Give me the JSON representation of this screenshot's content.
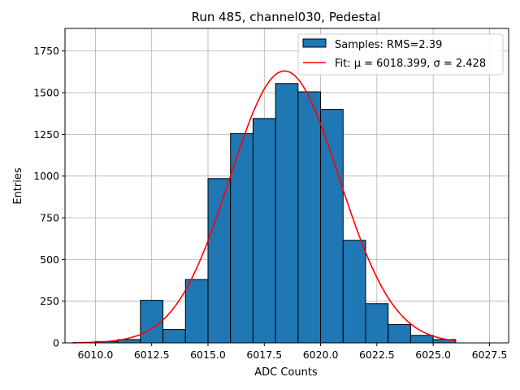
{
  "chart_data": {
    "type": "bar",
    "title": "Run 485, channel030, Pedestal",
    "xlabel": "ADC Counts",
    "ylabel": "Entries",
    "xlim": [
      6008.65,
      6028.35
    ],
    "ylim": [
      0,
      1885
    ],
    "xticks": [
      6010.0,
      6012.5,
      6015.0,
      6017.5,
      6020.0,
      6022.5,
      6025.0,
      6027.5
    ],
    "xtick_labels": [
      "6010.0",
      "6012.5",
      "6015.0",
      "6017.5",
      "6020.0",
      "6022.5",
      "6025.0",
      "6027.5"
    ],
    "yticks": [
      0,
      250,
      500,
      750,
      1000,
      1250,
      1500,
      1750
    ],
    "ytick_labels": [
      "0",
      "250",
      "500",
      "750",
      "1000",
      "1250",
      "1500",
      "1750"
    ],
    "grid": true,
    "legend_position": "top-right",
    "bin_width": 1.0,
    "bins": [
      {
        "left": 6010,
        "value": 8
      },
      {
        "left": 6011,
        "value": 20
      },
      {
        "left": 6012,
        "value": 255
      },
      {
        "left": 6013,
        "value": 80
      },
      {
        "left": 6014,
        "value": 380
      },
      {
        "left": 6015,
        "value": 985
      },
      {
        "left": 6016,
        "value": 1255
      },
      {
        "left": 6017,
        "value": 1345
      },
      {
        "left": 6018,
        "value": 1555
      },
      {
        "left": 6019,
        "value": 1505
      },
      {
        "left": 6020,
        "value": 1400
      },
      {
        "left": 6021,
        "value": 615
      },
      {
        "left": 6022,
        "value": 235
      },
      {
        "left": 6023,
        "value": 110
      },
      {
        "left": 6024,
        "value": 45
      },
      {
        "left": 6025,
        "value": 20
      }
    ],
    "fit": {
      "mu": 6018.399,
      "sigma": 2.428,
      "amplitude": 1630,
      "x_range": [
        6009,
        6026
      ]
    },
    "series": [
      {
        "name": "Samples: RMS=2.39",
        "kind": "histogram",
        "color": "#1f77b4",
        "edge_color": "#000000"
      },
      {
        "name": "Fit: μ = 6018.399, σ = 2.428",
        "kind": "line",
        "color": "#ff0000"
      }
    ]
  }
}
